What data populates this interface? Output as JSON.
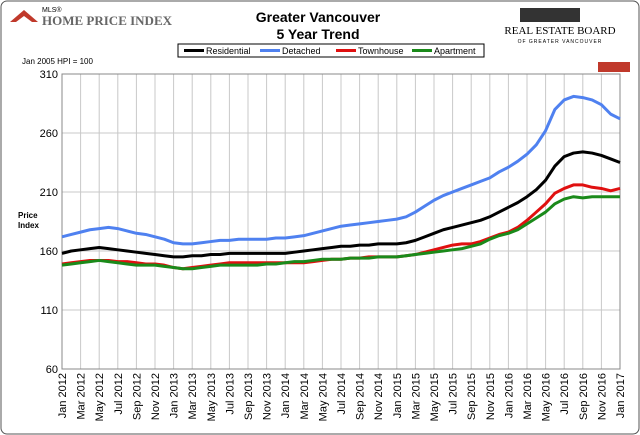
{
  "header": {
    "logo_small": "MLS®",
    "logo": "HOME PRICE INDEX",
    "board": "REAL ESTATE BOARD",
    "board_sub": "OF GREATER VANCOUVER"
  },
  "chart_data": {
    "type": "line",
    "title": "Greater Vancouver",
    "subtitle": "5 Year Trend",
    "note": "Jan 2005 HPI = 100",
    "ylabel": [
      "Price",
      "Index"
    ],
    "categories": [
      "Jan 2012",
      null,
      "Mar 2012",
      null,
      "May 2012",
      null,
      "Jul 2012",
      null,
      "Sep 2012",
      null,
      "Nov 2012",
      null,
      "Jan 2013",
      null,
      "Mar 2013",
      null,
      "May 2013",
      null,
      "Jul 2013",
      null,
      "Sep 2013",
      null,
      "Nov 2013",
      null,
      "Jan 2014",
      null,
      "Mar 2014",
      null,
      "May 2014",
      null,
      "Jul 2014",
      null,
      "Sep 2014",
      null,
      "Nov 2014",
      null,
      "Jan 2015",
      null,
      "Mar 2015",
      null,
      "May 2015",
      null,
      "Jul 2015",
      null,
      "Sep 2015",
      null,
      "Nov 2015",
      null,
      "Jan 2016",
      null,
      "Mar 2016",
      null,
      "May 2016",
      null,
      "Jul 2016",
      null,
      "Sep 2016",
      null,
      "Nov 2016",
      null,
      "Jan 2017"
    ],
    "series": [
      {
        "name": "Residential",
        "color": "#000000",
        "values": [
          158,
          160,
          161,
          162,
          163,
          162,
          161,
          160,
          159,
          158,
          157,
          156,
          155,
          155,
          156,
          156,
          157,
          157,
          158,
          158,
          158,
          158,
          158,
          158,
          158,
          159,
          160,
          161,
          162,
          163,
          164,
          164,
          165,
          165,
          166,
          166,
          166,
          167,
          169,
          172,
          175,
          178,
          180,
          182,
          184,
          186,
          189,
          193,
          197,
          201,
          206,
          212,
          220,
          232,
          240,
          243,
          244,
          243,
          241,
          238,
          235
        ]
      },
      {
        "name": "Detached",
        "color": "#4f81f0",
        "values": [
          172,
          174,
          176,
          178,
          179,
          180,
          179,
          177,
          175,
          174,
          172,
          170,
          167,
          166,
          166,
          167,
          168,
          169,
          169,
          170,
          170,
          170,
          170,
          171,
          171,
          172,
          173,
          175,
          177,
          179,
          181,
          182,
          183,
          184,
          185,
          186,
          187,
          189,
          193,
          198,
          203,
          207,
          210,
          213,
          216,
          219,
          222,
          227,
          231,
          236,
          242,
          250,
          262,
          280,
          288,
          291,
          290,
          288,
          284,
          276,
          272
        ]
      },
      {
        "name": "Townhouse",
        "color": "#e01010",
        "values": [
          149,
          150,
          151,
          152,
          152,
          152,
          151,
          151,
          150,
          149,
          149,
          148,
          146,
          145,
          146,
          147,
          148,
          149,
          150,
          150,
          150,
          150,
          150,
          150,
          150,
          150,
          150,
          151,
          152,
          153,
          153,
          154,
          154,
          155,
          155,
          155,
          155,
          156,
          157,
          159,
          161,
          163,
          165,
          166,
          166,
          168,
          171,
          174,
          176,
          180,
          186,
          193,
          200,
          209,
          213,
          216,
          216,
          214,
          213,
          211,
          213
        ]
      },
      {
        "name": "Apartment",
        "color": "#1a8a1a",
        "values": [
          148,
          149,
          150,
          151,
          152,
          151,
          150,
          149,
          148,
          148,
          148,
          147,
          146,
          145,
          145,
          146,
          147,
          148,
          148,
          148,
          148,
          148,
          149,
          149,
          150,
          151,
          151,
          152,
          153,
          153,
          153,
          154,
          154,
          154,
          155,
          155,
          155,
          156,
          157,
          158,
          159,
          160,
          161,
          162,
          164,
          166,
          170,
          173,
          175,
          178,
          183,
          188,
          193,
          200,
          204,
          206,
          205,
          206,
          206,
          206,
          206
        ]
      }
    ],
    "ylim": [
      60,
      310
    ],
    "yticks": [
      60,
      110,
      160,
      210,
      260,
      310
    ],
    "grid": true
  }
}
